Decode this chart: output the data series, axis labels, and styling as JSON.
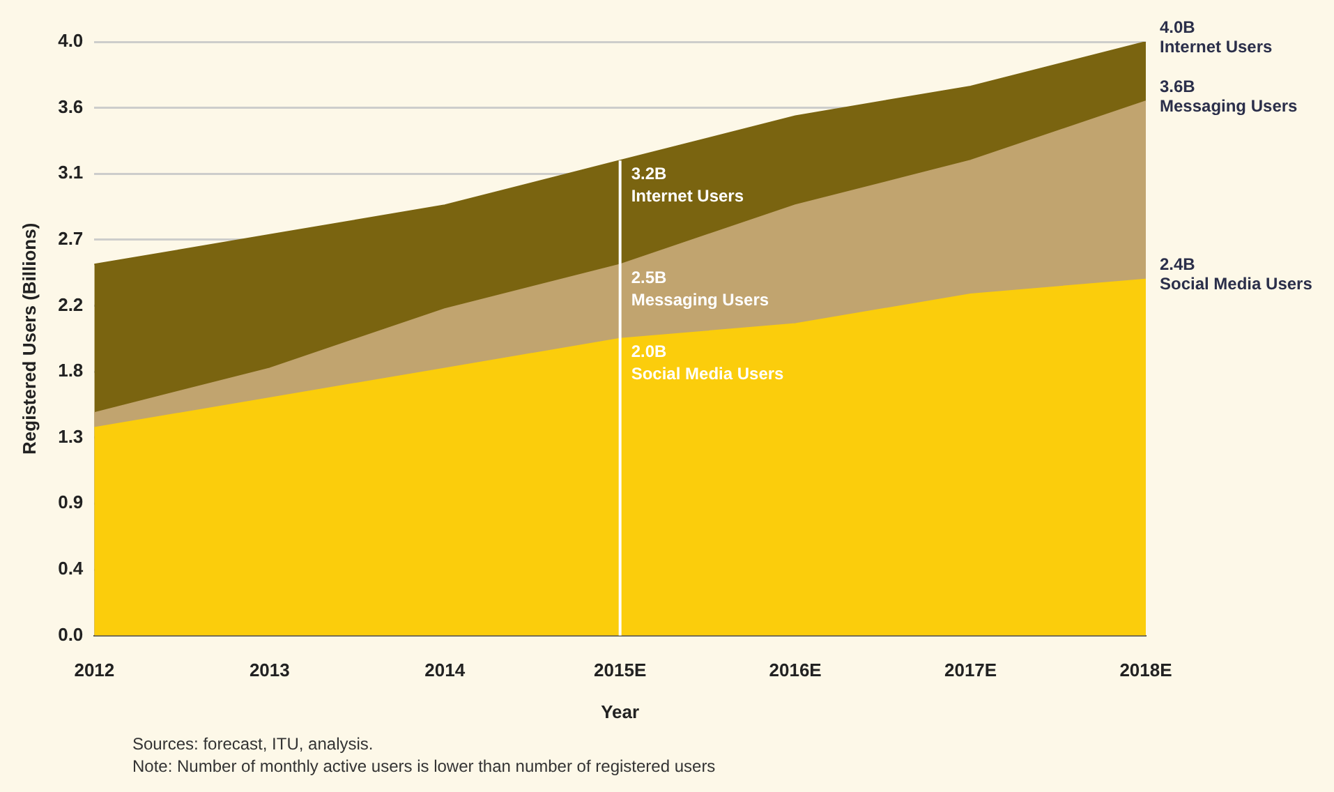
{
  "chart_data": {
    "type": "area",
    "xlabel": "Year",
    "ylabel": "Registered Users (Billions)",
    "categories": [
      "2012",
      "2013",
      "2014",
      "2015E",
      "2016E",
      "2017E",
      "2018E"
    ],
    "series": [
      {
        "name": "Internet Users",
        "color": "#7a6410",
        "values": [
          2.5,
          2.7,
          2.9,
          3.2,
          3.5,
          3.7,
          4.0
        ],
        "value_labels": [
          null,
          null,
          null,
          "3.2B",
          null,
          null,
          "4.0B"
        ]
      },
      {
        "name": "Messaging Users",
        "color": "#c1a46f",
        "values": [
          1.5,
          1.8,
          2.2,
          2.5,
          2.9,
          3.2,
          3.6
        ],
        "value_labels": [
          null,
          null,
          null,
          "2.5B",
          null,
          null,
          "3.6B"
        ]
      },
      {
        "name": "Social Media Users",
        "color": "#fbcd0c",
        "values": [
          1.4,
          1.6,
          1.8,
          2.0,
          2.1,
          2.3,
          2.4
        ],
        "value_labels": [
          null,
          null,
          null,
          "2.0B",
          null,
          null,
          "2.4B"
        ]
      }
    ],
    "ylim": [
      0,
      4.0
    ],
    "yticks": [
      {
        "value": 0,
        "label": "0.0"
      },
      {
        "value": 0.444,
        "label": "0.4"
      },
      {
        "value": 0.889,
        "label": "0.9"
      },
      {
        "value": 1.333,
        "label": "1.3"
      },
      {
        "value": 1.778,
        "label": "1.8"
      },
      {
        "value": 2.222,
        "label": "2.2"
      },
      {
        "value": 2.667,
        "label": "2.7"
      },
      {
        "value": 3.111,
        "label": "3.1"
      },
      {
        "value": 3.556,
        "label": "3.6"
      },
      {
        "value": 4.0,
        "label": "4.0"
      }
    ],
    "grid": "y",
    "legend": false,
    "ref_lines": [
      {
        "axis": "x",
        "value": "2015E",
        "color": "#ffffff"
      }
    ],
    "annotations": [
      "Sources: forecast, ITU, analysis.",
      "Note: Number of monthly active users is lower than number of registered users"
    ]
  }
}
